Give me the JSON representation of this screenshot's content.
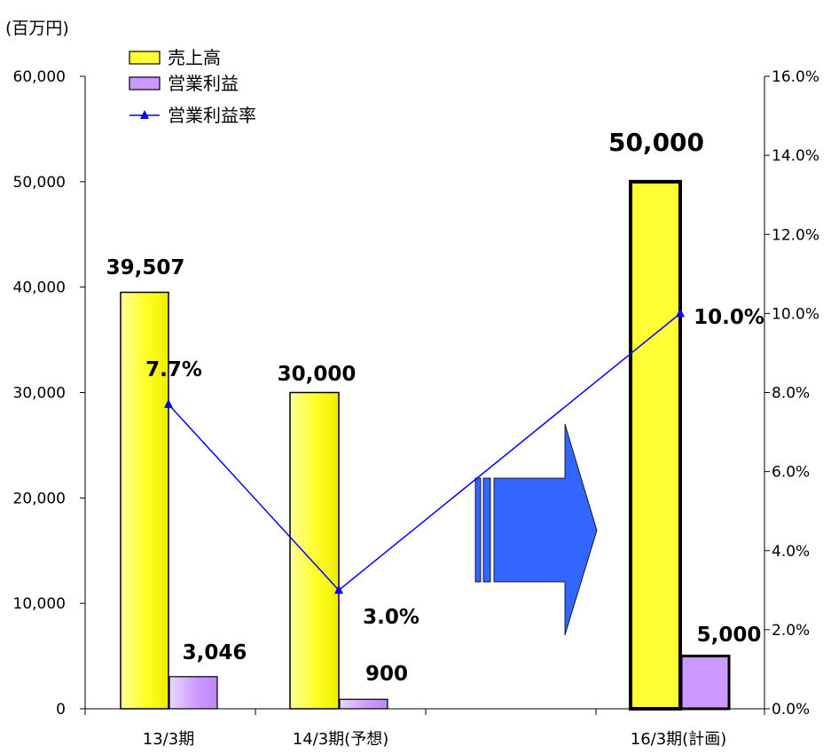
{
  "chart_data": {
    "type": "bar",
    "unit_label": "(百万円)",
    "categories": [
      "13/3期",
      "14/3期(予想)",
      "16/3期(計画)"
    ],
    "series": [
      {
        "name": "売上高",
        "kind": "bar",
        "axis": "left",
        "values": [
          39507,
          30000,
          50000
        ],
        "labels": [
          "39,507",
          "30,000",
          "50,000"
        ],
        "color": "#ffff33"
      },
      {
        "name": "営業利益",
        "kind": "bar",
        "axis": "left",
        "values": [
          3046,
          900,
          5000
        ],
        "labels": [
          "3,046",
          "900",
          "5,000"
        ],
        "color": "#cc99ff"
      },
      {
        "name": "営業利益率",
        "kind": "line",
        "axis": "right",
        "values": [
          7.7,
          3.0,
          10.0
        ],
        "labels": [
          "7.7%",
          "3.0%",
          "10.0%"
        ],
        "color": "#0000ff"
      }
    ],
    "y_left": {
      "min": 0,
      "max": 60000,
      "ticks": [
        "0",
        "10,000",
        "20,000",
        "30,000",
        "40,000",
        "50,000",
        "60,000"
      ]
    },
    "y_right": {
      "min": 0,
      "max": 16,
      "ticks": [
        "0.0%",
        "2.0%",
        "4.0%",
        "6.0%",
        "8.0%",
        "10.0%",
        "12.0%",
        "14.0%",
        "16.0%"
      ]
    },
    "legend_position": "top-left",
    "grid": false,
    "arrow_color": "#3366ff"
  }
}
